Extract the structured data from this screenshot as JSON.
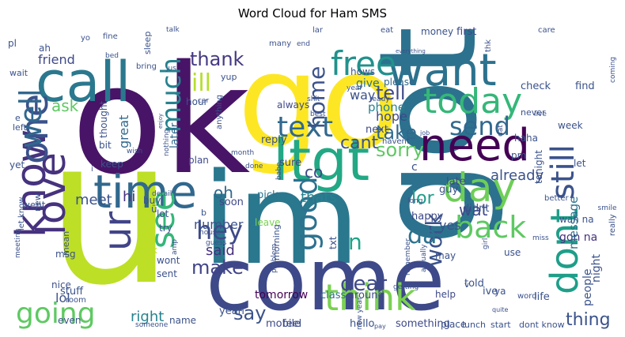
{
  "chart_data": {
    "type": "wordcloud",
    "title": "Word Cloud for Ham SMS",
    "words": [
      {
        "text": "u",
        "weight": 1.0,
        "color": "#bddf26"
      },
      {
        "text": "ok",
        "weight": 0.82,
        "color": "#481467"
      },
      {
        "text": "go",
        "weight": 0.78,
        "color": "#fde725"
      },
      {
        "text": "got",
        "weight": 0.72,
        "color": "#2c728e"
      },
      {
        "text": "im",
        "weight": 0.7,
        "color": "#2a788e"
      },
      {
        "text": "come",
        "weight": 0.55,
        "color": "#3e4989"
      },
      {
        "text": "call",
        "weight": 0.42,
        "color": "#2a788e"
      },
      {
        "text": "ltgt",
        "weight": 0.38,
        "color": "#22a884"
      },
      {
        "text": "want",
        "weight": 0.36,
        "color": "#2c728e"
      },
      {
        "text": "time",
        "weight": 0.35,
        "color": "#31688e"
      },
      {
        "text": "need",
        "weight": 0.35,
        "color": "#440154"
      },
      {
        "text": "know",
        "weight": 0.34,
        "color": "#46327e"
      },
      {
        "text": "love",
        "weight": 0.33,
        "color": "#46327e"
      },
      {
        "text": "one",
        "weight": 0.33,
        "color": "#3b528b"
      },
      {
        "text": "free",
        "weight": 0.3,
        "color": "#21918c"
      },
      {
        "text": "today",
        "weight": 0.29,
        "color": "#35b779"
      },
      {
        "text": "think",
        "weight": 0.28,
        "color": "#7ad151"
      },
      {
        "text": "dont",
        "weight": 0.28,
        "color": "#1f9e89"
      },
      {
        "text": "day",
        "weight": 0.27,
        "color": "#6ece58"
      },
      {
        "text": "well",
        "weight": 0.27,
        "color": "#31688e"
      },
      {
        "text": "ur",
        "weight": 0.25,
        "color": "#414487"
      },
      {
        "text": "see",
        "weight": 0.24,
        "color": "#35b779"
      },
      {
        "text": "text",
        "weight": 0.23,
        "color": "#31688e"
      },
      {
        "text": "good",
        "weight": 0.22,
        "color": "#2c728e"
      },
      {
        "text": "still",
        "weight": 0.22,
        "color": "#3b528b"
      },
      {
        "text": "back",
        "weight": 0.21,
        "color": "#5ec962"
      },
      {
        "text": "going",
        "weight": 0.2,
        "color": "#5ec962"
      },
      {
        "text": "much",
        "weight": 0.19,
        "color": "#26828e"
      },
      {
        "text": "hey",
        "weight": 0.19,
        "color": "#3e4989"
      },
      {
        "text": "send",
        "weight": 0.18,
        "color": "#31688e"
      },
      {
        "text": "ill",
        "weight": 0.17,
        "color": "#b5de2b"
      },
      {
        "text": "home",
        "weight": 0.16,
        "color": "#3b528b"
      },
      {
        "text": "work",
        "weight": 0.16,
        "color": "#3b528b"
      },
      {
        "text": "thank",
        "weight": 0.15,
        "color": "#443a83"
      },
      {
        "text": "tell",
        "weight": 0.15,
        "color": "#3e4989"
      },
      {
        "text": "take",
        "weight": 0.15,
        "color": "#31688e"
      },
      {
        "text": "dear",
        "weight": 0.15,
        "color": "#3e4989"
      },
      {
        "text": "make",
        "weight": 0.15,
        "color": "#414487"
      },
      {
        "text": "say",
        "weight": 0.14,
        "color": "#3b528b"
      },
      {
        "text": "sorry",
        "weight": 0.14,
        "color": "#5ec962"
      },
      {
        "text": "da",
        "weight": 0.14,
        "color": "#2c728e"
      },
      {
        "text": "n",
        "weight": 0.14,
        "color": "#20a486"
      },
      {
        "text": "cant",
        "weight": 0.13,
        "color": "#3b528b"
      },
      {
        "text": "oh",
        "weight": 0.13,
        "color": "#31688e"
      },
      {
        "text": "lor",
        "weight": 0.13,
        "color": "#1f9e89"
      },
      {
        "text": "ask",
        "weight": 0.13,
        "color": "#5ec962"
      },
      {
        "text": "thing",
        "weight": 0.12,
        "color": "#3b528b"
      },
      {
        "text": "co",
        "weight": 0.12,
        "color": "#3e4989"
      },
      {
        "text": "hi",
        "weight": 0.11,
        "color": "#46327e"
      },
      {
        "text": "thats",
        "weight": 0.1,
        "color": "#26828e"
      },
      {
        "text": "already",
        "weight": 0.1,
        "color": "#3b528b"
      },
      {
        "text": "said",
        "weight": 0.1,
        "color": "#46327e"
      },
      {
        "text": "wat",
        "weight": 0.1,
        "color": "#3e4989"
      },
      {
        "text": "meet",
        "weight": 0.1,
        "color": "#3b528b"
      },
      {
        "text": "number",
        "weight": 0.1,
        "color": "#3b528b"
      },
      {
        "text": "lol",
        "weight": 0.1,
        "color": "#3b528b"
      },
      {
        "text": "right",
        "weight": 0.1,
        "color": "#26828e"
      },
      {
        "text": "great",
        "weight": 0.09,
        "color": "#31688e"
      },
      {
        "text": "phone",
        "weight": 0.09,
        "color": "#26828e"
      },
      {
        "text": "friend",
        "weight": 0.09,
        "color": "#3e4989"
      },
      {
        "text": "way",
        "weight": 0.09,
        "color": "#3b528b"
      },
      {
        "text": "give",
        "weight": 0.09,
        "color": "#2c728e"
      },
      {
        "text": "hope",
        "weight": 0.09,
        "color": "#3e4989"
      },
      {
        "text": "yes",
        "weight": 0.08,
        "color": "#3b528b"
      },
      {
        "text": "gon na",
        "weight": 0.08,
        "color": "#46327e"
      },
      {
        "text": "message",
        "weight": 0.08,
        "color": "#2c728e"
      },
      {
        "text": "tomorrow",
        "weight": 0.07,
        "color": "#440154"
      },
      {
        "text": "night",
        "weight": 0.07,
        "color": "#3b528b"
      },
      {
        "text": "people",
        "weight": 0.07,
        "color": "#3b528b"
      },
      {
        "text": "pick",
        "weight": 0.07,
        "color": "#2c728e"
      },
      {
        "text": "reply",
        "weight": 0.07,
        "color": "#3b528b"
      },
      {
        "text": "sure",
        "weight": 0.07,
        "color": "#3e4989"
      },
      {
        "text": "class",
        "weight": 0.07,
        "color": "#2c728e"
      },
      {
        "text": "around",
        "weight": 0.07,
        "color": "#3e4989"
      },
      {
        "text": "please",
        "weight": 0.07,
        "color": "#31688e"
      },
      {
        "text": "next",
        "weight": 0.07,
        "color": "#3e4989"
      },
      {
        "text": "c",
        "weight": 0.07,
        "color": "#3b528b"
      },
      {
        "text": "late",
        "weight": 0.07,
        "color": "#3e4989"
      },
      {
        "text": "didnt",
        "weight": 0.07,
        "color": "#3b528b"
      },
      {
        "text": "guy",
        "weight": 0.07,
        "color": "#3b528b"
      },
      {
        "text": "happy",
        "weight": 0.07,
        "color": "#3e4989"
      },
      {
        "text": "later",
        "weight": 0.07,
        "color": "#31688e"
      },
      {
        "text": "feel",
        "weight": 0.07,
        "color": "#3b528b"
      },
      {
        "text": "yeah",
        "weight": 0.07,
        "color": "#3b528b"
      },
      {
        "text": "mobile",
        "weight": 0.07,
        "color": "#3e4989"
      },
      {
        "text": "stuff",
        "weight": 0.07,
        "color": "#3b528b"
      },
      {
        "text": "something",
        "weight": 0.07,
        "color": "#3e4989"
      },
      {
        "text": "hello",
        "weight": 0.07,
        "color": "#3b528b"
      },
      {
        "text": "told",
        "weight": 0.07,
        "color": "#3b528b"
      },
      {
        "text": "ive",
        "weight": 0.07,
        "color": "#3b528b"
      },
      {
        "text": "life",
        "weight": 0.07,
        "color": "#3b528b"
      },
      {
        "text": "soon",
        "weight": 0.06,
        "color": "#3e4989"
      },
      {
        "text": "leave",
        "weight": 0.06,
        "color": "#7ad151"
      },
      {
        "text": "check",
        "weight": 0.06,
        "color": "#3b528b"
      },
      {
        "text": "find",
        "weight": 0.06,
        "color": "#3b528b"
      },
      {
        "text": "always",
        "weight": 0.06,
        "color": "#3e4989"
      },
      {
        "text": "hows",
        "weight": 0.06,
        "color": "#3b528b"
      },
      {
        "text": "money",
        "weight": 0.06,
        "color": "#3b528b"
      },
      {
        "text": "first",
        "weight": 0.06,
        "color": "#3e4989"
      },
      {
        "text": "week",
        "weight": 0.06,
        "color": "#3b528b"
      },
      {
        "text": "haha",
        "weight": 0.06,
        "color": "#3b528b"
      },
      {
        "text": "hour",
        "weight": 0.06,
        "color": "#3b528b"
      },
      {
        "text": "plan",
        "weight": 0.06,
        "color": "#3e4989"
      },
      {
        "text": "keep",
        "weight": 0.06,
        "color": "#3b528b"
      },
      {
        "text": "bit",
        "weight": 0.06,
        "color": "#3b528b"
      },
      {
        "text": "went",
        "weight": 0.06,
        "color": "#3b528b"
      },
      {
        "text": "tonight",
        "weight": 0.06,
        "color": "#3b528b"
      },
      {
        "text": "let",
        "weight": 0.06,
        "color": "#3b528b"
      },
      {
        "text": "pm",
        "weight": 0.06,
        "color": "#3b528b"
      },
      {
        "text": "wan na",
        "weight": 0.06,
        "color": "#3b528b"
      },
      {
        "text": "ya",
        "weight": 0.06,
        "color": "#3b528b"
      },
      {
        "text": "help",
        "weight": 0.06,
        "color": "#3e4989"
      },
      {
        "text": "place",
        "weight": 0.06,
        "color": "#3b528b"
      },
      {
        "text": "use",
        "weight": 0.06,
        "color": "#3b528b"
      },
      {
        "text": "may",
        "weight": 0.06,
        "color": "#3b528b"
      },
      {
        "text": "buy",
        "weight": 0.06,
        "color": "#3b528b"
      },
      {
        "text": "lot",
        "weight": 0.06,
        "color": "#3b528b"
      },
      {
        "text": "try",
        "weight": 0.06,
        "color": "#3b528b"
      },
      {
        "text": "wont",
        "weight": 0.06,
        "color": "#3b528b"
      },
      {
        "text": "sent",
        "weight": 0.06,
        "color": "#3b528b"
      },
      {
        "text": "look",
        "weight": 0.06,
        "color": "#bddf26"
      },
      {
        "text": "even",
        "weight": 0.06,
        "color": "#3b528b"
      },
      {
        "text": "name",
        "weight": 0.06,
        "color": "#3b528b"
      },
      {
        "text": "lunch",
        "weight": 0.06,
        "color": "#3b528b"
      },
      {
        "text": "start",
        "weight": 0.06,
        "color": "#3b528b"
      },
      {
        "text": "dont know",
        "weight": 0.06,
        "color": "#3b528b"
      },
      {
        "text": "txt",
        "weight": 0.06,
        "color": "#3b528b"
      },
      {
        "text": "morning",
        "weight": 0.06,
        "color": "#3b528b"
      },
      {
        "text": "msg",
        "weight": 0.06,
        "color": "#3b528b"
      },
      {
        "text": "nice",
        "weight": 0.06,
        "color": "#3b528b"
      },
      {
        "text": "mean",
        "weight": 0.06,
        "color": "#3b528b"
      },
      {
        "text": "ü",
        "weight": 0.06,
        "color": "#3b528b"
      },
      {
        "text": "new",
        "weight": 0.06,
        "color": "#3b528b"
      },
      {
        "text": "word",
        "weight": 0.06,
        "color": "#3b528b"
      },
      {
        "text": "room",
        "weight": 0.06,
        "color": "#3b528b"
      },
      {
        "text": "guess",
        "weight": 0.05,
        "color": "#3b528b"
      },
      {
        "text": "house",
        "weight": 0.05,
        "color": "#3b528b"
      },
      {
        "text": "amp",
        "weight": 0.05,
        "color": "#3b528b"
      },
      {
        "text": "b",
        "weight": 0.05,
        "color": "#3b528b"
      },
      {
        "text": "detail",
        "weight": 0.05,
        "color": "#3b528b"
      },
      {
        "text": "thought",
        "weight": 0.05,
        "color": "#3b528b"
      },
      {
        "text": "ready",
        "weight": 0.05,
        "color": "#3b528b"
      },
      {
        "text": "shit",
        "weight": 0.05,
        "color": "#3b528b"
      },
      {
        "text": "best",
        "weight": 0.05,
        "color": "#3b528b"
      },
      {
        "text": "never",
        "weight": 0.05,
        "color": "#3b528b"
      },
      {
        "text": "live",
        "weight": 0.05,
        "color": "#3b528b"
      },
      {
        "text": "car",
        "weight": 0.05,
        "color": "#3b528b"
      },
      {
        "text": "jus",
        "weight": 0.05,
        "color": "#3b528b"
      },
      {
        "text": "yup",
        "weight": 0.05,
        "color": "#3b528b"
      },
      {
        "text": "bring",
        "weight": 0.05,
        "color": "#3b528b"
      },
      {
        "text": "sleep",
        "weight": 0.05,
        "color": "#3b528b"
      },
      {
        "text": "fine",
        "weight": 0.05,
        "color": "#3b528b"
      },
      {
        "text": "talk",
        "weight": 0.05,
        "color": "#3b528b"
      },
      {
        "text": "bed",
        "weight": 0.05,
        "color": "#3b528b"
      },
      {
        "text": "yo",
        "weight": 0.05,
        "color": "#3b528b"
      },
      {
        "text": "ah",
        "weight": 0.05,
        "color": "#3b528b"
      },
      {
        "text": "pl",
        "weight": 0.05,
        "color": "#3b528b"
      },
      {
        "text": "wait",
        "weight": 0.05,
        "color": "#3b528b"
      },
      {
        "text": "e",
        "weight": 0.05,
        "color": "#3b528b"
      },
      {
        "text": "left",
        "weight": 0.05,
        "color": "#3b528b"
      },
      {
        "text": "yet",
        "weight": 0.05,
        "color": "#3b528b"
      },
      {
        "text": "let know",
        "weight": 0.05,
        "color": "#3b528b"
      },
      {
        "text": "meeting",
        "weight": 0.05,
        "color": "#3b528b"
      },
      {
        "text": "someone",
        "weight": 0.05,
        "color": "#3b528b"
      },
      {
        "text": "many",
        "weight": 0.05,
        "color": "#3b528b"
      },
      {
        "text": "end",
        "weight": 0.05,
        "color": "#3b528b"
      },
      {
        "text": "lar",
        "weight": 0.05,
        "color": "#3b528b"
      },
      {
        "text": "eat",
        "weight": 0.05,
        "color": "#3b528b"
      },
      {
        "text": "care",
        "weight": 0.05,
        "color": "#3b528b"
      },
      {
        "text": "coming",
        "weight": 0.05,
        "color": "#3b528b"
      },
      {
        "text": "thk",
        "weight": 0.05,
        "color": "#3b528b"
      },
      {
        "text": "everything",
        "weight": 0.04,
        "color": "#3b528b"
      },
      {
        "text": "year",
        "weight": 0.05,
        "color": "#3b528b"
      },
      {
        "text": "havent",
        "weight": 0.05,
        "color": "#3b528b"
      },
      {
        "text": "job",
        "weight": 0.05,
        "color": "#3b528b"
      },
      {
        "text": "dat",
        "weight": 0.05,
        "color": "#3b528b"
      },
      {
        "text": "better",
        "weight": 0.05,
        "color": "#3b528b"
      },
      {
        "text": "smile",
        "weight": 0.05,
        "color": "#3b528b"
      },
      {
        "text": "miss",
        "weight": 0.05,
        "color": "#3b528b"
      },
      {
        "text": "girl",
        "weight": 0.05,
        "color": "#3b528b"
      },
      {
        "text": "really",
        "weight": 0.05,
        "color": "#3b528b"
      },
      {
        "text": "quite",
        "weight": 0.04,
        "color": "#3b528b"
      },
      {
        "text": "actually",
        "weight": 0.05,
        "color": "#3b528b"
      },
      {
        "text": "new year",
        "weight": 0.05,
        "color": "#3b528b"
      },
      {
        "text": "getting",
        "weight": 0.05,
        "color": "#3b528b"
      },
      {
        "text": "remember",
        "weight": 0.05,
        "color": "#3b528b"
      },
      {
        "text": "problem",
        "weight": 0.05,
        "color": "#3b528b"
      },
      {
        "text": "babe",
        "weight": 0.05,
        "color": "#3b528b"
      },
      {
        "text": "month",
        "weight": 0.05,
        "color": "#3b528b"
      },
      {
        "text": "done",
        "weight": 0.05,
        "color": "#3b528b"
      },
      {
        "text": "anything",
        "weight": 0.05,
        "color": "#3b528b"
      },
      {
        "text": "nothing",
        "weight": 0.05,
        "color": "#3b528b"
      },
      {
        "text": "enjoy",
        "weight": 0.04,
        "color": "#3b528b"
      },
      {
        "text": "wish",
        "weight": 0.05,
        "color": "#3b528b"
      },
      {
        "text": "long",
        "weight": 0.05,
        "color": "#3b528b"
      },
      {
        "text": "v",
        "weight": 0.05,
        "color": "#3b528b"
      },
      {
        "text": "pay",
        "weight": 0.04,
        "color": "#3b528b"
      },
      {
        "text": "i",
        "weight": 0.05,
        "color": "#3b528b"
      }
    ]
  }
}
